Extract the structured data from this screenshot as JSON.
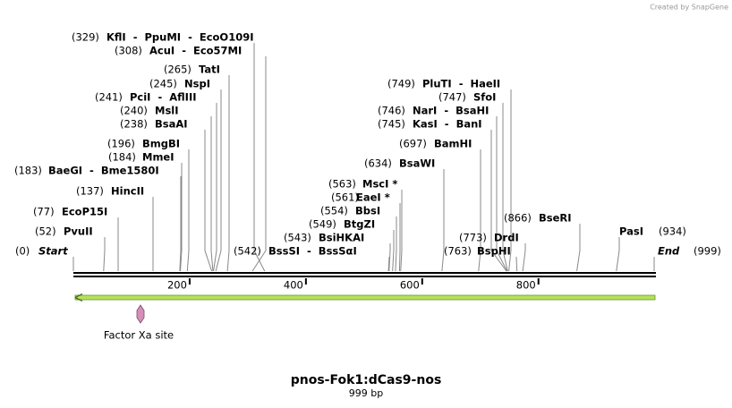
{
  "credit": "Created by SnapGene",
  "title": "pnos-Fok1:dCas9-nos",
  "subtitle": "999 bp",
  "sequence_length": 999,
  "ruler_ticks": [
    200,
    400,
    600,
    800
  ],
  "sites": [
    {
      "position": 329,
      "position_label": "(329)",
      "name": "KflI  -  PpuMI  -  EcoO109I"
    },
    {
      "position": 308,
      "position_label": "(308)",
      "name": "AcuI  -  Eco57MI"
    },
    {
      "position": 265,
      "position_label": "(265)",
      "name": "TatI"
    },
    {
      "position": 245,
      "position_label": "(245)",
      "name": "NspI"
    },
    {
      "position": 241,
      "position_label": "(241)",
      "name": "PciI  -  AflIII"
    },
    {
      "position": 240,
      "position_label": "(240)",
      "name": "MslI"
    },
    {
      "position": 238,
      "position_label": "(238)",
      "name": "BsaAI"
    },
    {
      "position": 196,
      "position_label": "(196)",
      "name": "BmgBI"
    },
    {
      "position": 184,
      "position_label": "(184)",
      "name": "MmeI"
    },
    {
      "position": 183,
      "position_label": "(183)",
      "name": "BaeGI  -  Bme1580I"
    },
    {
      "position": 137,
      "position_label": "(137)",
      "name": "HincII"
    },
    {
      "position": 77,
      "position_label": "(77)",
      "name": "EcoP15I"
    },
    {
      "position": 52,
      "position_label": "(52)",
      "name": "PvuII"
    },
    {
      "position": 0,
      "position_label": "(0)",
      "name": "Start"
    },
    {
      "position": 542,
      "position_label": "(542)",
      "name": "BssSI  -  BssSαI"
    },
    {
      "position": 543,
      "position_label": "(543)",
      "name": "BsiHKAI"
    },
    {
      "position": 549,
      "position_label": "(549)",
      "name": "BtgZI"
    },
    {
      "position": 554,
      "position_label": "(554)",
      "name": "BbsI"
    },
    {
      "position": 561,
      "position_label": "(561)",
      "name": "EaeI *"
    },
    {
      "position": 563,
      "position_label": "(563)",
      "name": "MscI *"
    },
    {
      "position": 634,
      "position_label": "(634)",
      "name": "BsaWI"
    },
    {
      "position": 697,
      "position_label": "(697)",
      "name": "BamHI"
    },
    {
      "position": 745,
      "position_label": "(745)",
      "name": "KasI  -  BanI"
    },
    {
      "position": 746,
      "position_label": "(746)",
      "name": "NarI  -  BsaHI"
    },
    {
      "position": 747,
      "position_label": "(747)",
      "name": "SfoI"
    },
    {
      "position": 749,
      "position_label": "(749)",
      "name": "PluTI  -  HaeII"
    },
    {
      "position": 773,
      "position_label": "(773)",
      "name": "DrdI"
    },
    {
      "position": 763,
      "position_label": "(763)",
      "name": "BspHI"
    },
    {
      "position": 866,
      "position_label": "(866)",
      "name": "BseRI"
    },
    {
      "position": 934,
      "position_label": "(934)",
      "name": "PasI"
    },
    {
      "position": 999,
      "position_label": "(999)",
      "name": "End"
    }
  ],
  "feature": {
    "label": "Factor Xa site"
  }
}
